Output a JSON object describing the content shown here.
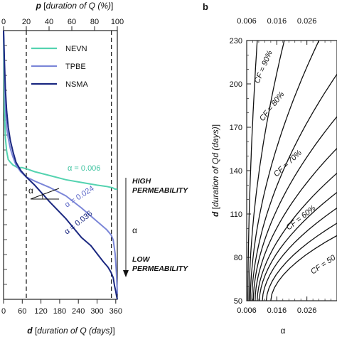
{
  "chart_data": [
    {
      "type": "line",
      "panel_label": "",
      "top_axis_label_var": "p",
      "top_axis_label_text": "duration of Q (%)",
      "top_ticks": [
        "0",
        "20",
        "40",
        "60",
        "80",
        "100"
      ],
      "bottom_axis_label_var": "d",
      "bottom_axis_label_text": "duration of Q (days)",
      "bottom_ticks": [
        "0",
        "60",
        "120",
        "180",
        "240",
        "300",
        "360"
      ],
      "xlim": [
        0,
        365
      ],
      "ylim": [
        0,
        1
      ],
      "vlines_days": [
        73,
        346
      ],
      "legend_placement": "top-right",
      "series": [
        {
          "name": "NEVN",
          "color": "#54d3b0",
          "x": [
            0,
            3,
            6,
            10,
            15,
            22,
            30,
            45,
            60,
            75,
            100,
            150,
            200,
            250,
            300,
            330,
            350,
            358,
            365
          ],
          "y": [
            1.0,
            0.7,
            0.6,
            0.55,
            0.52,
            0.51,
            0.5,
            0.49,
            0.49,
            0.485,
            0.475,
            0.46,
            0.445,
            0.435,
            0.425,
            0.42,
            0.415,
            0.41,
            0.41
          ]
        },
        {
          "name": "TPBE",
          "color": "#7b86d8",
          "x": [
            0,
            3,
            6,
            10,
            15,
            22,
            30,
            40,
            55,
            73,
            100,
            150,
            200,
            250,
            300,
            330,
            345,
            352,
            358,
            362,
            365
          ],
          "y": [
            1.0,
            0.85,
            0.72,
            0.64,
            0.6,
            0.56,
            0.53,
            0.5,
            0.475,
            0.455,
            0.44,
            0.415,
            0.385,
            0.34,
            0.29,
            0.26,
            0.24,
            0.22,
            0.17,
            0.1,
            0.02
          ]
        },
        {
          "name": "NSMA",
          "color": "#1a2780",
          "x": [
            0,
            3,
            6,
            10,
            15,
            22,
            30,
            40,
            55,
            73,
            100,
            150,
            200,
            250,
            280,
            300,
            320,
            335,
            345,
            352,
            356,
            360,
            363,
            365
          ],
          "y": [
            1.0,
            0.88,
            0.78,
            0.7,
            0.64,
            0.59,
            0.55,
            0.51,
            0.48,
            0.455,
            0.425,
            0.36,
            0.3,
            0.23,
            0.2,
            0.17,
            0.14,
            0.12,
            0.1,
            0.08,
            0.05,
            0.03,
            0.01,
            0.0
          ]
        }
      ],
      "annotations": {
        "alpha_symbol": "α",
        "alpha_nevn": "α = 0.006",
        "alpha_tpbe": "α = 0.024",
        "alpha_nsma": "α = 0.036",
        "high_line1": "HIGH",
        "high_line2": "PERMEABILITY",
        "low_line1": "LOW",
        "low_line2": "PERMEABILITY",
        "alpha_arrow": "α"
      }
    },
    {
      "type": "line",
      "panel_label": "b",
      "top_ticks": [
        "0.006",
        "0.016",
        "0.026"
      ],
      "x_ticks": [
        "0.006",
        "0.016",
        "0.026"
      ],
      "xlabel": "α",
      "ylabel_var": "d",
      "ylabel_text": "duration of Qd (days)",
      "ylabel_unit": "days",
      "xlim": [
        0.006,
        0.036
      ],
      "ylim": [
        50,
        230
      ],
      "y_ticks": [
        50,
        80,
        110,
        140,
        170,
        200,
        230
      ],
      "contour_labels": [
        "CF = 90%",
        "CF = 80%",
        "CF = 70%",
        "CF = 60%",
        "CF = 50"
      ]
    }
  ]
}
